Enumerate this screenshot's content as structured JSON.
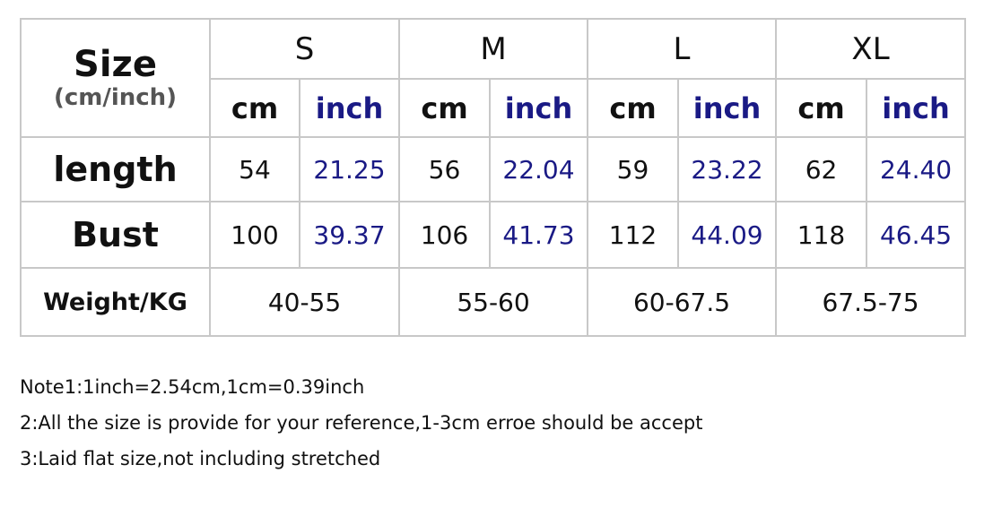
{
  "table": {
    "corner_title": "Size",
    "corner_subtitle": "(cm/inch)",
    "sizes": [
      "S",
      "M",
      "L",
      "XL"
    ],
    "unit_cm": "cm",
    "unit_inch": "inch",
    "rows": [
      {
        "label": "length",
        "values": [
          [
            "54",
            "21.25"
          ],
          [
            "56",
            "22.04"
          ],
          [
            "59",
            "23.22"
          ],
          [
            "62",
            "24.40"
          ]
        ]
      },
      {
        "label": "Bust",
        "values": [
          [
            "100",
            "39.37"
          ],
          [
            "106",
            "41.73"
          ],
          [
            "112",
            "44.09"
          ],
          [
            "118",
            "46.45"
          ]
        ]
      }
    ],
    "weight": {
      "label": "Weight/KG",
      "values": [
        "40-55",
        "55-60",
        "60-67.5",
        "67.5-75"
      ]
    }
  },
  "notes": [
    "Note1:1inch=2.54cm,1cm=0.39inch",
    "2:All the size is provide for your reference,1-3cm erroe should be accept",
    "3:Laid flat size,not including stretched"
  ],
  "colors": {
    "text": "#111111",
    "inch_text": "#1a1a85",
    "border": "#c8c8c8"
  }
}
